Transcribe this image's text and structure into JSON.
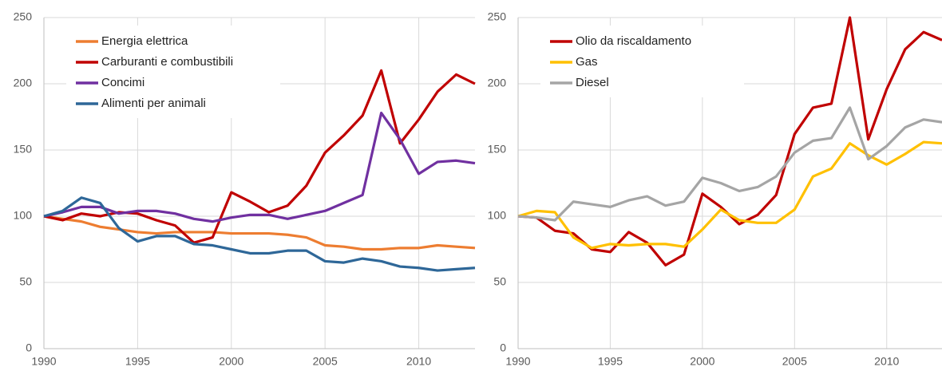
{
  "chart_data": [
    {
      "type": "line",
      "x": [
        1990,
        1991,
        1992,
        1993,
        1994,
        1995,
        1996,
        1997,
        1998,
        1999,
        2000,
        2001,
        2002,
        2003,
        2004,
        2005,
        2006,
        2007,
        2008,
        2009,
        2010,
        2011,
        2012,
        2013
      ],
      "xlim": [
        1990,
        2013
      ],
      "xticks": [
        1990,
        1995,
        2000,
        2005,
        2010
      ],
      "ylim": [
        0,
        250
      ],
      "yticks": [
        0,
        50,
        100,
        150,
        200,
        250
      ],
      "grid": true,
      "legend": "upper left",
      "series": [
        {
          "name": "Energia elettrica",
          "color": "#ed7d31",
          "values": [
            100,
            98,
            96,
            92,
            90,
            88,
            87,
            88,
            88,
            88,
            87,
            87,
            87,
            86,
            84,
            78,
            77,
            75,
            75,
            76,
            76,
            78,
            77,
            76
          ]
        },
        {
          "name": "Carburanti e combustibili",
          "color": "#c00000",
          "values": [
            100,
            97,
            102,
            100,
            103,
            102,
            97,
            93,
            80,
            84,
            118,
            111,
            103,
            108,
            123,
            148,
            161,
            176,
            210,
            155,
            173,
            194,
            207,
            200
          ]
        },
        {
          "name": "Concimi",
          "color": "#7030a0",
          "values": [
            100,
            103,
            107,
            107,
            102,
            104,
            104,
            102,
            98,
            96,
            99,
            101,
            101,
            98,
            101,
            104,
            110,
            116,
            178,
            158,
            132,
            141,
            142,
            140
          ]
        },
        {
          "name": "Alimenti per animali",
          "color": "#2e6798",
          "values": [
            100,
            104,
            114,
            110,
            91,
            81,
            85,
            85,
            79,
            78,
            75,
            72,
            72,
            74,
            74,
            66,
            65,
            68,
            66,
            62,
            61,
            59,
            60,
            61
          ]
        }
      ]
    },
    {
      "type": "line",
      "x": [
        1990,
        1991,
        1992,
        1993,
        1994,
        1995,
        1996,
        1997,
        1998,
        1999,
        2000,
        2001,
        2002,
        2003,
        2004,
        2005,
        2006,
        2007,
        2008,
        2009,
        2010,
        2011,
        2012,
        2013
      ],
      "xlim": [
        1990,
        2013
      ],
      "xticks": [
        1990,
        1995,
        2000,
        2005,
        2010
      ],
      "ylim": [
        0,
        250
      ],
      "yticks": [
        0,
        50,
        100,
        150,
        200,
        250
      ],
      "grid": true,
      "legend": "upper left",
      "series": [
        {
          "name": "Olio da riscaldamento",
          "color": "#c00000",
          "values": [
            100,
            99,
            89,
            87,
            75,
            73,
            88,
            80,
            63,
            71,
            117,
            107,
            94,
            101,
            116,
            162,
            182,
            185,
            250,
            158,
            196,
            226,
            239,
            233
          ]
        },
        {
          "name": "Gas",
          "color": "#ffc000",
          "values": [
            100,
            104,
            103,
            84,
            76,
            79,
            78,
            79,
            79,
            77,
            90,
            105,
            97,
            95,
            95,
            105,
            130,
            136,
            155,
            146,
            139,
            147,
            156,
            155
          ]
        },
        {
          "name": "Diesel",
          "color": "#a5a5a5",
          "values": [
            100,
            99,
            97,
            111,
            109,
            107,
            112,
            115,
            108,
            111,
            129,
            125,
            119,
            122,
            130,
            148,
            157,
            159,
            182,
            143,
            153,
            167,
            173,
            171
          ]
        }
      ]
    }
  ]
}
